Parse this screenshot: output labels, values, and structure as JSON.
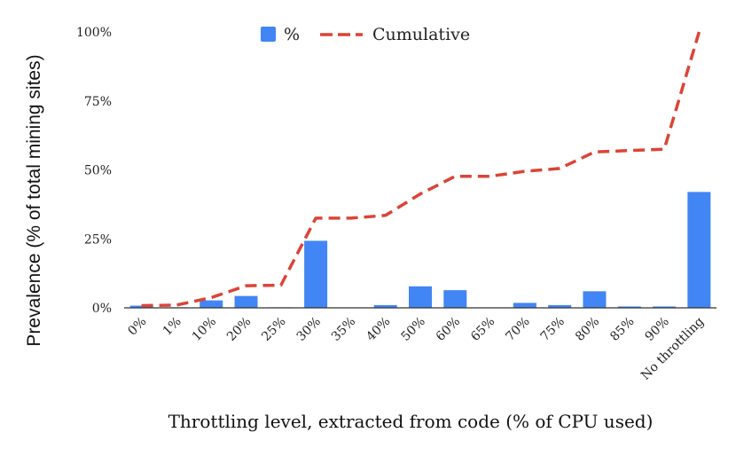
{
  "chart_data": {
    "type": "bar",
    "title": "",
    "xlabel": "Throttling level, extracted from code (% of CPU used)",
    "ylabel": "Prevalence (% of total mining sites)",
    "categories": [
      "0%",
      "1%",
      "10%",
      "20%",
      "25%",
      "30%",
      "35%",
      "40%",
      "50%",
      "60%",
      "65%",
      "70%",
      "75%",
      "80%",
      "85%",
      "90%",
      "No throttling"
    ],
    "series": [
      {
        "name": "%",
        "type": "bar",
        "color": "#4285f4",
        "values": [
          0.8,
          0.2,
          2.7,
          4.3,
          0.2,
          24.3,
          0.0,
          1.0,
          7.8,
          6.4,
          0.0,
          1.8,
          1.0,
          6.0,
          0.5,
          0.5,
          42.0
        ]
      },
      {
        "name": "Cumulative",
        "type": "line",
        "style": "dashed",
        "color": "#db4437",
        "values": [
          0.8,
          1.0,
          3.7,
          8.0,
          8.2,
          32.5,
          32.5,
          33.5,
          41.3,
          47.7,
          47.7,
          49.5,
          50.5,
          56.5,
          57.0,
          57.5,
          100.0
        ]
      }
    ],
    "ylim": [
      0,
      100
    ],
    "yticks": [
      "0%",
      "25%",
      "50%",
      "75%",
      "100%"
    ],
    "ytick_values": [
      0,
      25,
      50,
      75,
      100
    ],
    "grid": false,
    "legend_position": "top-center"
  }
}
